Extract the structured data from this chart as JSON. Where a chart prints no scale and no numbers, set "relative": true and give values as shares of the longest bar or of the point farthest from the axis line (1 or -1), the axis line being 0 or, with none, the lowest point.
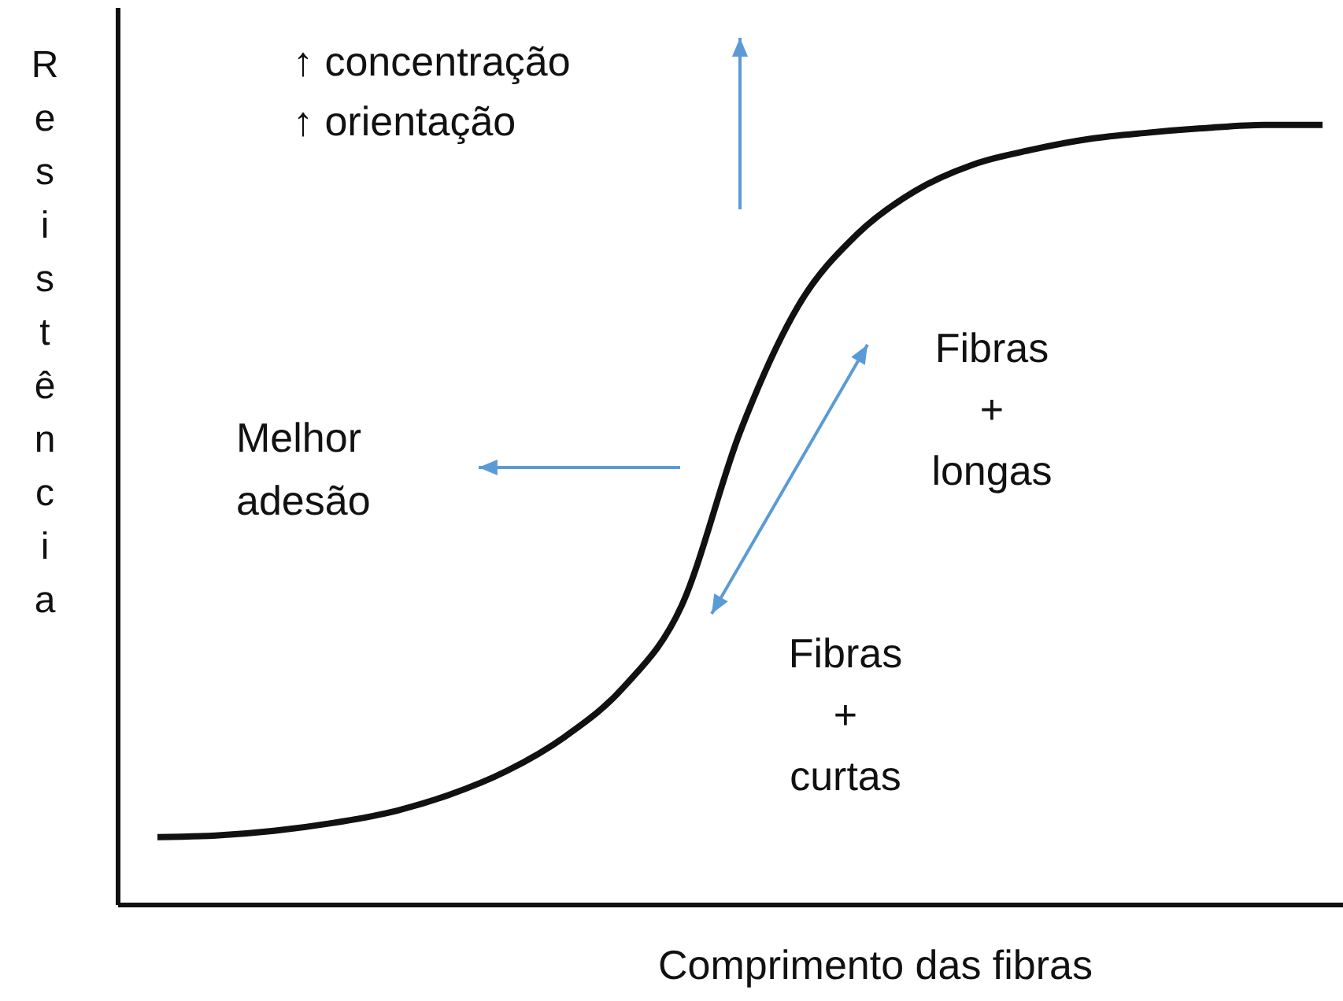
{
  "chart_data": {
    "type": "line",
    "relative": true,
    "xlabel": "Comprimento das fibras",
    "ylabel": "Resistência",
    "categories": [
      null,
      null,
      null,
      null,
      null,
      null,
      null,
      null,
      null,
      null,
      null,
      null,
      null,
      null,
      null,
      null,
      null,
      null,
      null,
      null,
      null
    ],
    "series": [
      {
        "color": "#111111",
        "values": [
          0.087,
          0.089,
          0.095,
          0.105,
          0.119,
          0.141,
          0.172,
          0.216,
          0.279,
          0.384,
          0.606,
          0.768,
          0.859,
          0.915,
          0.949,
          0.968,
          0.982,
          0.99,
          0.996,
          1,
          1
        ]
      }
    ],
    "marker": "none",
    "line_style": "solid",
    "annotations": [
      "↑ concentração",
      "↑ orientação",
      "Melhor adesão",
      "Fibras + longas",
      "Fibras + curtas"
    ]
  }
}
